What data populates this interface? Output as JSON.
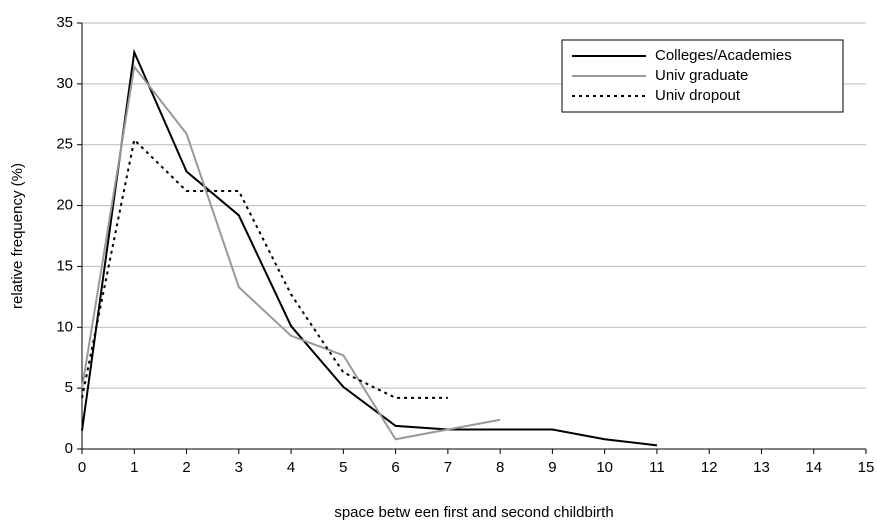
{
  "chart_data": {
    "type": "line",
    "x_label": "space betw een first and second childbirth",
    "y_label": "relative frequency (%)",
    "x": [
      0,
      1,
      2,
      3,
      4,
      5,
      6,
      7,
      8,
      9,
      10,
      11
    ],
    "series": [
      {
        "name": "Colleges/Academies",
        "color": "#000000",
        "dash": "solid",
        "values": [
          1.5,
          32.6,
          22.8,
          19.2,
          10.1,
          5.1,
          1.9,
          1.6,
          1.6,
          1.6,
          0.8,
          0.3
        ]
      },
      {
        "name": "Univ graduate",
        "color": "#999999",
        "dash": "solid",
        "values": [
          5.0,
          31.4,
          25.9,
          13.3,
          9.3,
          7.7,
          0.8,
          1.6,
          2.4,
          null,
          null,
          null
        ]
      },
      {
        "name": "Univ dropout",
        "color": "#000000",
        "dash": "dotted",
        "values": [
          4.2,
          25.4,
          21.2,
          21.2,
          12.7,
          6.3,
          4.2,
          4.2,
          null,
          null,
          null,
          null
        ]
      }
    ],
    "xlim": [
      0,
      15
    ],
    "xticks": [
      0,
      1,
      2,
      3,
      4,
      5,
      6,
      7,
      8,
      9,
      10,
      11,
      12,
      13,
      14,
      15
    ],
    "ylim": [
      0,
      35
    ],
    "yticks": [
      0,
      5,
      10,
      15,
      20,
      25,
      30,
      35
    ],
    "grid": true,
    "legend": "upper right"
  }
}
